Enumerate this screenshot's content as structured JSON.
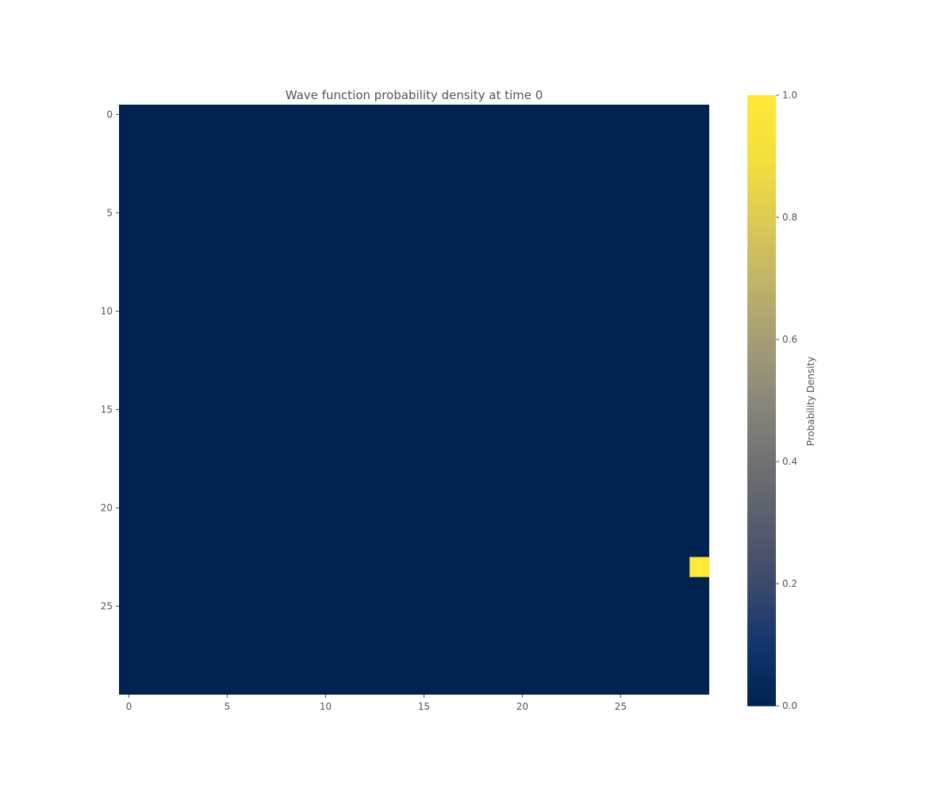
{
  "chart_data": {
    "type": "heatmap",
    "title": "Wave function probability density at time 0",
    "grid_size": [
      30,
      30
    ],
    "x_ticks": [
      0,
      5,
      10,
      15,
      20,
      25
    ],
    "y_ticks": [
      0,
      5,
      10,
      15,
      20,
      25
    ],
    "x_range": [
      -0.5,
      29.5
    ],
    "y_range": [
      -0.5,
      29.5
    ],
    "y_inverted": true,
    "background_value": 0.0,
    "cells": [
      {
        "x": 29,
        "y": 23,
        "value": 1.0
      }
    ],
    "colorbar": {
      "label": "Probability Density",
      "range": [
        0.0,
        1.0
      ],
      "ticks": [
        "0.0",
        "0.2",
        "0.4",
        "0.6",
        "0.8",
        "1.0"
      ],
      "placement": "right",
      "colormap": "cividis",
      "low_color": "#00224e",
      "high_color": "#fee838"
    },
    "grid": false
  }
}
